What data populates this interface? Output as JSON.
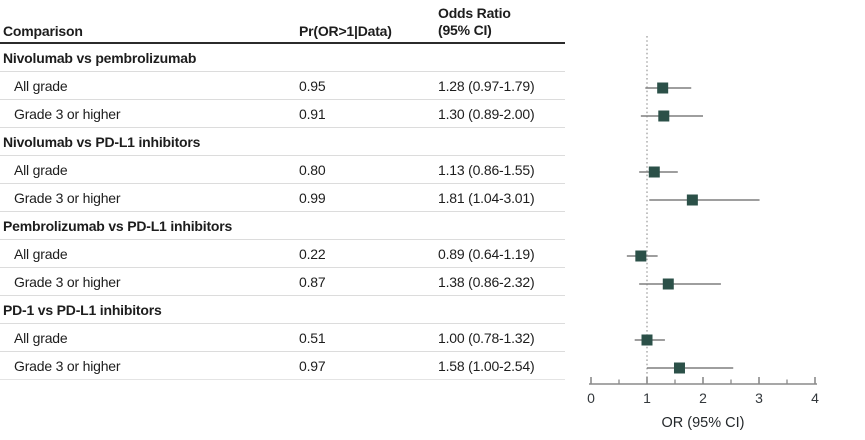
{
  "table": {
    "headers": {
      "comparison": "Comparison",
      "pr": "Pr(OR>1|Data)",
      "or_line1": "Odds Ratio",
      "or_line2": "(95% CI)"
    },
    "sections": [
      {
        "label": "Nivolumab vs pembrolizumab",
        "rows": [
          {
            "label": "All grade",
            "pr": "0.95",
            "or_ci": "1.28 (0.97-1.79)"
          },
          {
            "label": "Grade 3 or higher",
            "pr": "0.91",
            "or_ci": "1.30 (0.89-2.00)"
          }
        ]
      },
      {
        "label": "Nivolumab vs PD-L1 inhibitors",
        "rows": [
          {
            "label": "All grade",
            "pr": "0.80",
            "or_ci": "1.13 (0.86-1.55)"
          },
          {
            "label": "Grade 3 or higher",
            "pr": "0.99",
            "or_ci": "1.81 (1.04-3.01)"
          }
        ]
      },
      {
        "label": "Pembrolizumab vs PD-L1 inhibitors",
        "rows": [
          {
            "label": "All grade",
            "pr": "0.22",
            "or_ci": "0.89 (0.64-1.19)"
          },
          {
            "label": "Grade 3 or higher",
            "pr": "0.87",
            "or_ci": "1.38 (0.86-2.32)"
          }
        ]
      },
      {
        "label": "PD-1 vs PD-L1 inhibitors",
        "rows": [
          {
            "label": "All grade",
            "pr": "0.51",
            "or_ci": "1.00 (0.78-1.32)"
          },
          {
            "label": "Grade 3 or higher",
            "pr": "0.97",
            "or_ci": "1.58 (1.00-2.54)"
          }
        ]
      }
    ]
  },
  "chart_data": {
    "type": "scatter",
    "subtype": "forest",
    "xlabel": "OR (95% CI)",
    "xlim": [
      0,
      4
    ],
    "x_ticks": [
      "0",
      "1",
      "2",
      "3",
      "4"
    ],
    "x_tick_values": [
      0,
      1,
      2,
      3,
      4
    ],
    "x_minor_tick_values": [
      0.5,
      1.5,
      2.5,
      3.5
    ],
    "reference_line_x": 1,
    "grid": false,
    "legend": "none",
    "points": [
      {
        "label": "Nivolumab vs pembrolizumab - All grade",
        "or": 1.28,
        "ci_low": 0.97,
        "ci_high": 1.79
      },
      {
        "label": "Nivolumab vs pembrolizumab - Grade 3 or higher",
        "or": 1.3,
        "ci_low": 0.89,
        "ci_high": 2.0
      },
      {
        "label": "Nivolumab vs PD-L1 inhibitors - All grade",
        "or": 1.13,
        "ci_low": 0.86,
        "ci_high": 1.55
      },
      {
        "label": "Nivolumab vs PD-L1 inhibitors - Grade 3 or higher",
        "or": 1.81,
        "ci_low": 1.04,
        "ci_high": 3.01
      },
      {
        "label": "Pembrolizumab vs PD-L1 inhibitors - All grade",
        "or": 0.89,
        "ci_low": 0.64,
        "ci_high": 1.19
      },
      {
        "label": "Pembrolizumab vs PD-L1 inhibitors - Grade 3 or higher",
        "or": 1.38,
        "ci_low": 0.86,
        "ci_high": 2.32
      },
      {
        "label": "PD-1 vs PD-L1 inhibitors - All grade",
        "or": 1.0,
        "ci_low": 0.78,
        "ci_high": 1.32
      },
      {
        "label": "PD-1 vs PD-L1 inhibitors - Grade 3 or higher",
        "or": 1.58,
        "ci_low": 1.0,
        "ci_high": 2.54
      }
    ]
  },
  "colors": {
    "marker": "#2b5048",
    "ci_line": "#7f7f7f",
    "reference_line": "#9a9a9a",
    "axis": "#8a8a8a",
    "header_rule": "#2b2b2b",
    "row_rule": "#dcdcdc",
    "text": "#1d1d1d"
  }
}
